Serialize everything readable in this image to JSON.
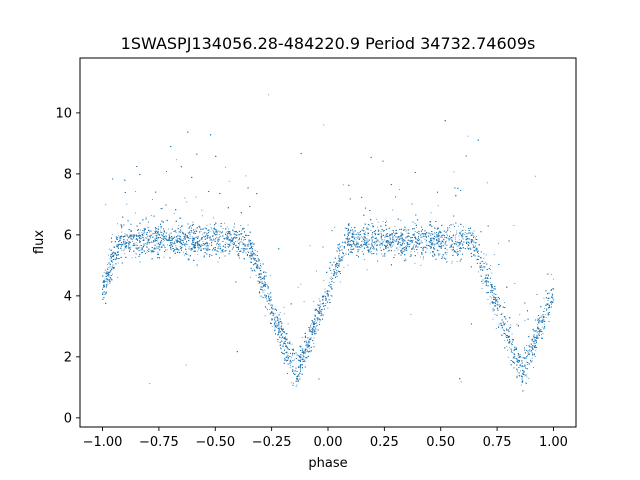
{
  "chart_data": {
    "type": "scatter",
    "title": "1SWASPJ134056.28-484220.9 Period 34732.74609s",
    "xlabel": "phase",
    "ylabel": "flux",
    "xlim": [
      -1.1,
      1.1
    ],
    "ylim": [
      -0.3,
      11.8
    ],
    "xticks": [
      -1.0,
      -0.75,
      -0.5,
      -0.25,
      0.0,
      0.25,
      0.5,
      0.75,
      1.0
    ],
    "xtick_labels": [
      "−1.00",
      "−0.75",
      "−0.50",
      "−0.25",
      "0.00",
      "0.25",
      "0.50",
      "0.75",
      "1.00"
    ],
    "yticks": [
      0,
      2,
      4,
      6,
      8,
      10
    ],
    "ytick_labels": [
      "0",
      "2",
      "4",
      "6",
      "8",
      "10"
    ],
    "grid": false,
    "point_color": "#1f77b4",
    "series": [
      {
        "baseline_flux": 5.8,
        "x_range": [
          -1.0,
          1.0
        ],
        "eclipses": [
          {
            "center_phase": -0.14,
            "min_flux": 1.4,
            "half_width": 0.22
          },
          {
            "center_phase": 0.86,
            "min_flux": 1.4,
            "half_width": 0.22
          },
          {
            "center_phase": -1.14,
            "min_flux": 1.4,
            "half_width": 0.22
          }
        ]
      }
    ]
  }
}
